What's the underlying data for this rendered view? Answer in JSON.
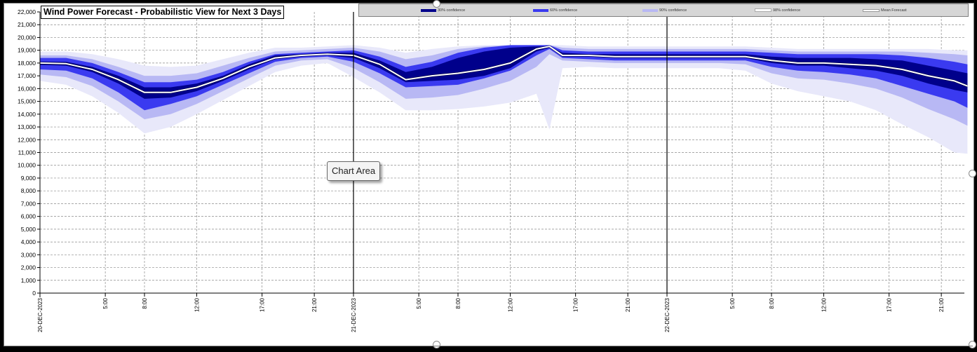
{
  "chart_data": {
    "type": "area",
    "title": "Wind Power Forecast - Probabilistic View for Next 3 Days",
    "ylim": [
      0,
      22000
    ],
    "y_ticks": [
      "22,000",
      "21,000",
      "20,000",
      "19,000",
      "18,000",
      "17,000",
      "16,000",
      "15,000",
      "14,000",
      "13,000",
      "12,000",
      "11,000",
      "10,000",
      "9,000",
      "8,000",
      "7,000",
      "6,000",
      "5,000",
      "4,000",
      "3,000",
      "2,000",
      "1,000",
      "0"
    ],
    "x_tick_labels": [
      {
        "hour": 0,
        "label": "20-DEC-2023"
      },
      {
        "hour": 5,
        "label": "5:00"
      },
      {
        "hour": 8,
        "label": "8:00"
      },
      {
        "hour": 12,
        "label": "12:00"
      },
      {
        "hour": 17,
        "label": "17:00"
      },
      {
        "hour": 21,
        "label": "21:00"
      },
      {
        "hour": 24,
        "label": "21-DEC-2023"
      },
      {
        "hour": 29,
        "label": "5:00"
      },
      {
        "hour": 32,
        "label": "8:00"
      },
      {
        "hour": 36,
        "label": "12:00"
      },
      {
        "hour": 41,
        "label": "17:00"
      },
      {
        "hour": 45,
        "label": "21:00"
      },
      {
        "hour": 48,
        "label": "22-DEC-2023"
      },
      {
        "hour": 53,
        "label": "5:00"
      },
      {
        "hour": 56,
        "label": "8:00"
      },
      {
        "hour": 60,
        "label": "12:00"
      },
      {
        "hour": 65,
        "label": "17:00"
      },
      {
        "hour": 69,
        "label": "21:00"
      }
    ],
    "day_separator_hours": [
      24,
      48
    ],
    "x_range_hours": [
      0,
      71
    ],
    "grid": true,
    "legend_position": "top-right",
    "series": [
      {
        "name": "30% confidence",
        "color": "#00008b"
      },
      {
        "name": "60% confidence",
        "color": "#3a3af0"
      },
      {
        "name": "90% confidence",
        "color": "#b8b8f4"
      },
      {
        "name": "98% confidence",
        "color": "#e8e8fa"
      },
      {
        "name": "Mean Forecast",
        "color": "#ffffff"
      }
    ],
    "hours": [
      0,
      2,
      4,
      6,
      8,
      10,
      12,
      14,
      16,
      18,
      20,
      22,
      24,
      26,
      28,
      30,
      32,
      34,
      36,
      38,
      39,
      40,
      42,
      44,
      46,
      48,
      50,
      52,
      54,
      56,
      58,
      60,
      62,
      64,
      66,
      68,
      70,
      71
    ],
    "mean": [
      18000,
      17950,
      17500,
      16700,
      15700,
      15700,
      16100,
      16800,
      17700,
      18400,
      18600,
      18700,
      18600,
      17900,
      16700,
      17000,
      17200,
      17500,
      18000,
      19100,
      19300,
      18600,
      18600,
      18500,
      18500,
      18500,
      18500,
      18500,
      18500,
      18200,
      18000,
      18000,
      17900,
      17800,
      17500,
      17000,
      16600,
      16200
    ],
    "band30": {
      "low": [
        17850,
        17800,
        17300,
        16400,
        15200,
        15300,
        15800,
        16600,
        17500,
        18300,
        18500,
        18600,
        18400,
        17600,
        16500,
        16600,
        16700,
        17000,
        17600,
        18900,
        19200,
        18500,
        18500,
        18400,
        18400,
        18400,
        18400,
        18400,
        18400,
        18000,
        17800,
        17800,
        17600,
        17400,
        17000,
        16400,
        15900,
        15700
      ],
      "high": [
        18100,
        18100,
        17700,
        17000,
        16100,
        16100,
        16400,
        17000,
        17900,
        18600,
        18700,
        18800,
        18800,
        18200,
        17300,
        17700,
        18400,
        18900,
        19200,
        19300,
        19300,
        18800,
        18700,
        18700,
        18700,
        18700,
        18700,
        18700,
        18700,
        18500,
        18400,
        18400,
        18400,
        18300,
        18200,
        17800,
        17400,
        17200
      ]
    },
    "band60": {
      "low": [
        17500,
        17400,
        16800,
        15700,
        14300,
        14800,
        15400,
        16300,
        17200,
        18100,
        18400,
        18500,
        18100,
        17200,
        16100,
        16200,
        16300,
        16800,
        17400,
        18600,
        19100,
        18400,
        18300,
        18200,
        18200,
        18200,
        18200,
        18200,
        18200,
        17700,
        17400,
        17300,
        17100,
        16800,
        16200,
        15600,
        15000,
        14500
      ],
      "high": [
        18400,
        18400,
        18000,
        17300,
        16500,
        16500,
        16700,
        17300,
        18100,
        18700,
        18800,
        18900,
        19000,
        18500,
        17700,
        18100,
        18800,
        19200,
        19400,
        19400,
        19400,
        19000,
        18900,
        18900,
        18900,
        18900,
        18900,
        18900,
        18900,
        18800,
        18700,
        18700,
        18700,
        18700,
        18600,
        18400,
        18100,
        17900
      ]
    },
    "band90": {
      "low": [
        17100,
        16900,
        16200,
        15000,
        13600,
        14000,
        14800,
        15800,
        16800,
        17800,
        18200,
        18300,
        17600,
        16500,
        15200,
        15300,
        15500,
        16000,
        16600,
        17700,
        18700,
        18200,
        18100,
        18000,
        18000,
        18000,
        18000,
        18000,
        17900,
        17200,
        16800,
        16700,
        16400,
        16000,
        15300,
        14400,
        13600,
        13100
      ],
      "high": [
        18600,
        18600,
        18300,
        17700,
        17000,
        17000,
        17200,
        17800,
        18400,
        18900,
        19000,
        19100,
        19200,
        18900,
        18300,
        18600,
        19100,
        19300,
        19400,
        19400,
        19400,
        19200,
        19100,
        19100,
        19100,
        19100,
        19100,
        19100,
        19100,
        19000,
        18900,
        18900,
        18900,
        18900,
        18900,
        18800,
        18700,
        18600
      ]
    },
    "band98": {
      "low": [
        16600,
        16300,
        15400,
        14100,
        12500,
        13000,
        14000,
        15100,
        16200,
        17300,
        17800,
        18000,
        16900,
        15700,
        14300,
        14300,
        14400,
        14600,
        14900,
        15600,
        12800,
        17600,
        17700,
        17600,
        17600,
        17600,
        17600,
        17600,
        17400,
        16400,
        15800,
        15400,
        15000,
        14300,
        13200,
        12200,
        11000,
        10900
      ],
      "high": [
        18900,
        18900,
        18700,
        18300,
        17800,
        17700,
        17800,
        18300,
        18800,
        19200,
        19200,
        19300,
        19400,
        19200,
        18800,
        19100,
        19300,
        19400,
        19400,
        19400,
        19400,
        19400,
        19300,
        19300,
        19300,
        19300,
        19300,
        19300,
        19300,
        19200,
        19100,
        19100,
        19100,
        19100,
        19100,
        19100,
        19000,
        19000
      ]
    }
  },
  "tooltip": {
    "label": "Chart Area"
  }
}
